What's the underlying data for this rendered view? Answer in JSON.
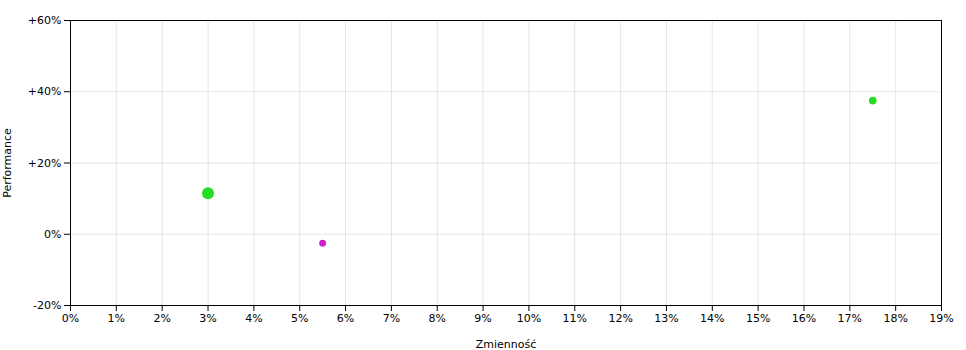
{
  "chart_data": {
    "type": "scatter",
    "xlabel": "Zmienność",
    "ylabel": "Performance",
    "x": [
      0.03,
      0.055,
      0.175
    ],
    "values": [
      0.115,
      -0.025,
      0.375
    ],
    "sizes": [
      55,
      18,
      22
    ],
    "colors": [
      "#22dd22",
      "#cc22cc",
      "#22dd22"
    ],
    "marker": "circle",
    "xlim": [
      0,
      0.19
    ],
    "ylim": [
      -0.2,
      0.6
    ],
    "xticks": [
      {
        "value": 0.0,
        "label": "0%"
      },
      {
        "value": 0.01,
        "label": "1%"
      },
      {
        "value": 0.02,
        "label": "2%"
      },
      {
        "value": 0.03,
        "label": "3%"
      },
      {
        "value": 0.04,
        "label": "4%"
      },
      {
        "value": 0.05,
        "label": "5%"
      },
      {
        "value": 0.06,
        "label": "6%"
      },
      {
        "value": 0.07,
        "label": "7%"
      },
      {
        "value": 0.08,
        "label": "8%"
      },
      {
        "value": 0.09,
        "label": "9%"
      },
      {
        "value": 0.1,
        "label": "10%"
      },
      {
        "value": 0.11,
        "label": "11%"
      },
      {
        "value": 0.12,
        "label": "12%"
      },
      {
        "value": 0.13,
        "label": "13%"
      },
      {
        "value": 0.14,
        "label": "14%"
      },
      {
        "value": 0.15,
        "label": "15%"
      },
      {
        "value": 0.16,
        "label": "16%"
      },
      {
        "value": 0.17,
        "label": "17%"
      },
      {
        "value": 0.18,
        "label": "18%"
      },
      {
        "value": 0.19,
        "label": "19%"
      }
    ],
    "yticks": [
      {
        "value": -0.2,
        "label": "-20%"
      },
      {
        "value": 0.0,
        "label": "0%"
      },
      {
        "value": 0.2,
        "label": "+20%"
      },
      {
        "value": 0.4,
        "label": "+40%"
      },
      {
        "value": 0.6,
        "label": "+60%"
      }
    ],
    "grid": true
  }
}
